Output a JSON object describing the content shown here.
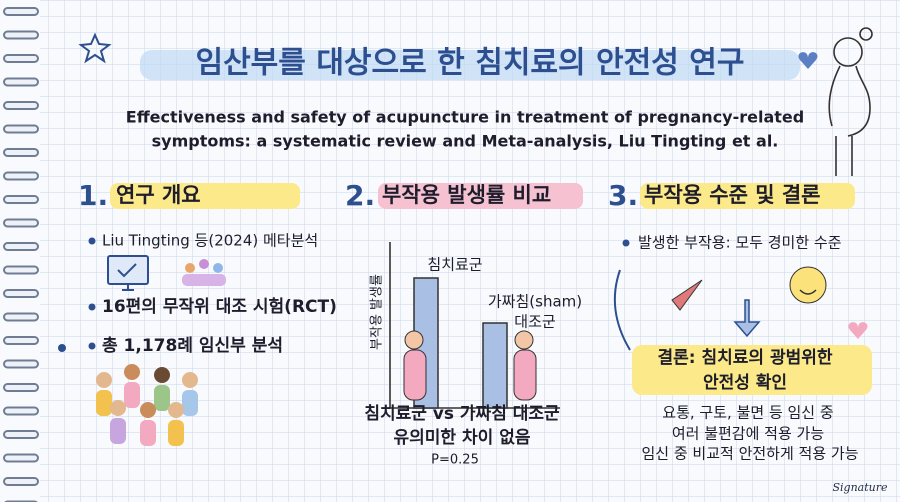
{
  "header": {
    "title": "임산부를 대상으로 한 침치료의 안전성 연구",
    "subtitle": [
      "Effectiveness and safety of acupuncture in treatment of pregnancy-related",
      "symptoms: a systematic review and Meta-analysis, Liu Tingting et al."
    ]
  },
  "sections": [
    {
      "number": "1.",
      "heading": "연구 개요",
      "items": [
        "Liu Tingting 등(2024) 메타분석",
        "16편의 무작위 대조 시험(RCT)",
        "총 1,178례 임신부 분석"
      ]
    },
    {
      "number": "2.",
      "heading": "부작용 발생률 비교",
      "axis_label": "부작용 발생률",
      "bar_labels": [
        [
          "침치료군"
        ],
        [
          "가짜침(sham)",
          "대조군"
        ]
      ],
      "conclusion": [
        "침치료군 vs 가짜침 대조군",
        "유의미한 차이 없음"
      ],
      "p_value": "P=0.25"
    },
    {
      "number": "3.",
      "heading": "부작용 수준 및 결론",
      "items": [
        "발생한 부작용: 모두 경미한 수준"
      ],
      "conclusion": [
        "결론: 침치료의 광범위한",
        "안전성 확인"
      ],
      "notes": [
        "요통, 구토, 불면 등 임신 중",
        "여러 불편감에 적용 가능",
        "임신 중 비교적 안전하게 적용 가능"
      ]
    }
  ],
  "signature": "Signature"
}
